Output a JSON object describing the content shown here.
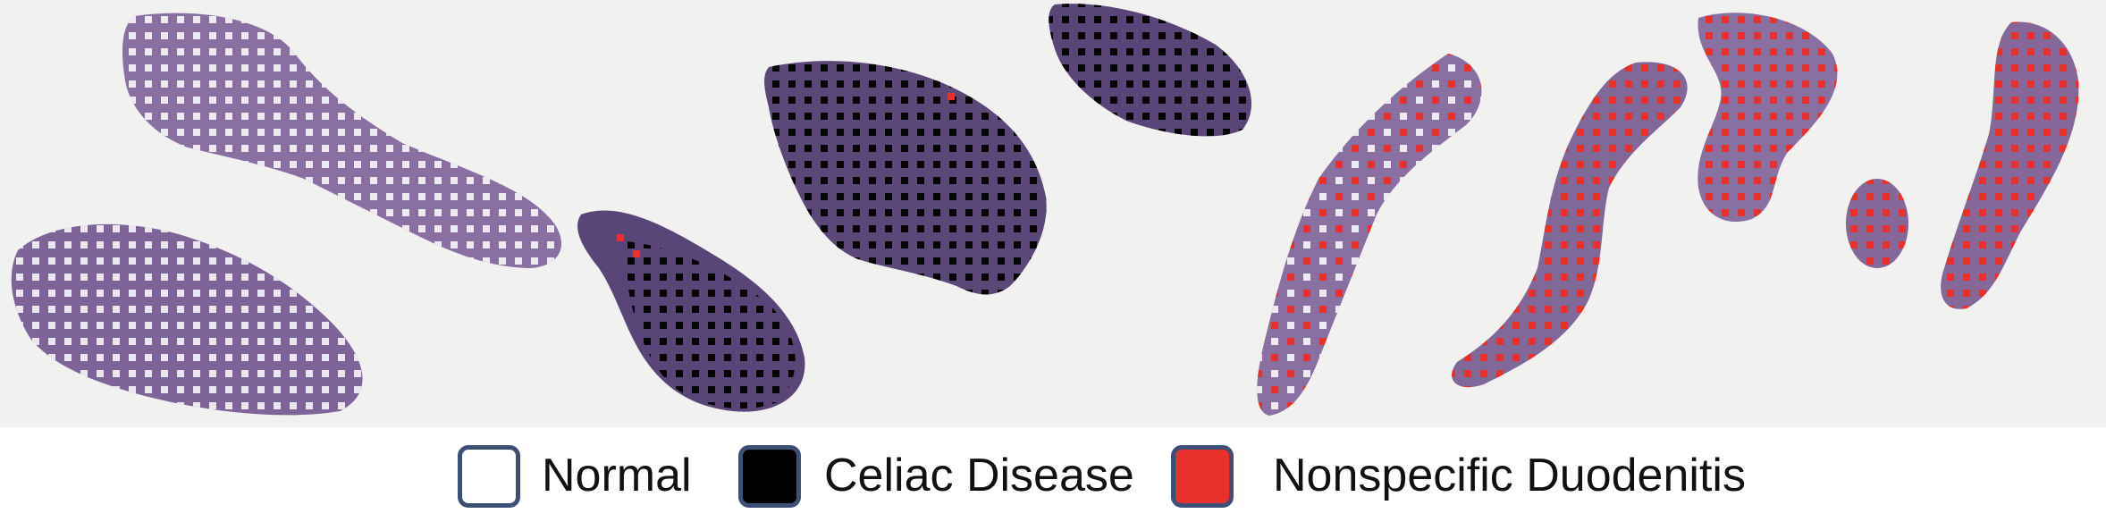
{
  "figure": {
    "slide_background": "#f1f1f0",
    "tissue_color": "#8a6fa3",
    "tissue_dark_color": "#53406f",
    "legend": [
      {
        "label": "Normal",
        "color": "#ffffff"
      },
      {
        "label": "Celiac Disease",
        "color": "#000000"
      },
      {
        "label": "Nonspecific Duodenitis",
        "color": "#e8312a"
      }
    ]
  }
}
